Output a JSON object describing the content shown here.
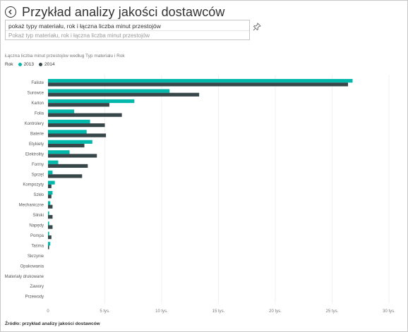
{
  "header": {
    "title": "Przykład analizy jakości dostawców",
    "back_icon": "back-arrow-icon"
  },
  "qa": {
    "query": "pokaż typy materiału, rok i łączna liczba minut przestojów",
    "suggestion": "Pokaż typ materiału, rok i łączna liczba minut przestojów",
    "pin_icon": "pin-icon"
  },
  "chart_data": {
    "type": "bar",
    "orientation": "horizontal",
    "title": "Łączna liczba minut przestojów według Typ materiału i Rok",
    "legend_title": "Rok",
    "legend_position": "top-left",
    "categories": [
      "Faliste",
      "Surowce",
      "Karton",
      "Folia",
      "Kontrolery",
      "Baterie",
      "Etykiety",
      "Elektrolity",
      "Formy",
      "Sprzęt",
      "Kompozyty",
      "Szkło",
      "Mechaniczne",
      "Silniki",
      "Napędy",
      "Pompa",
      "Taśma",
      "Skrzynie",
      "Opakowania",
      "Materiały drukowane",
      "Zawory",
      "Przewody"
    ],
    "series": [
      {
        "name": "2013",
        "color": "#01b8aa",
        "values": [
          26800,
          10700,
          7600,
          2300,
          3700,
          3400,
          3900,
          1900,
          900,
          400,
          600,
          400,
          200,
          100,
          100,
          100,
          200,
          0,
          0,
          0,
          0,
          0
        ]
      },
      {
        "name": "2014",
        "color": "#374649",
        "values": [
          26400,
          13300,
          5400,
          6500,
          5000,
          5100,
          3200,
          4300,
          3500,
          3000,
          300,
          300,
          400,
          400,
          400,
          300,
          100,
          0,
          0,
          0,
          0,
          0
        ]
      }
    ],
    "xlim": [
      0,
      30000
    ],
    "x_ticks": [
      {
        "value": 0,
        "label": "0"
      },
      {
        "value": 5000,
        "label": "5 tys."
      },
      {
        "value": 10000,
        "label": "10 tys."
      },
      {
        "value": 15000,
        "label": "15 tys."
      },
      {
        "value": 20000,
        "label": "20 tys."
      },
      {
        "value": 25000,
        "label": "25 tys."
      },
      {
        "value": 30000,
        "label": "30 tys."
      }
    ],
    "grid": true
  },
  "footer": {
    "source": "Źródło: przykład analizy jakości dostawców"
  }
}
